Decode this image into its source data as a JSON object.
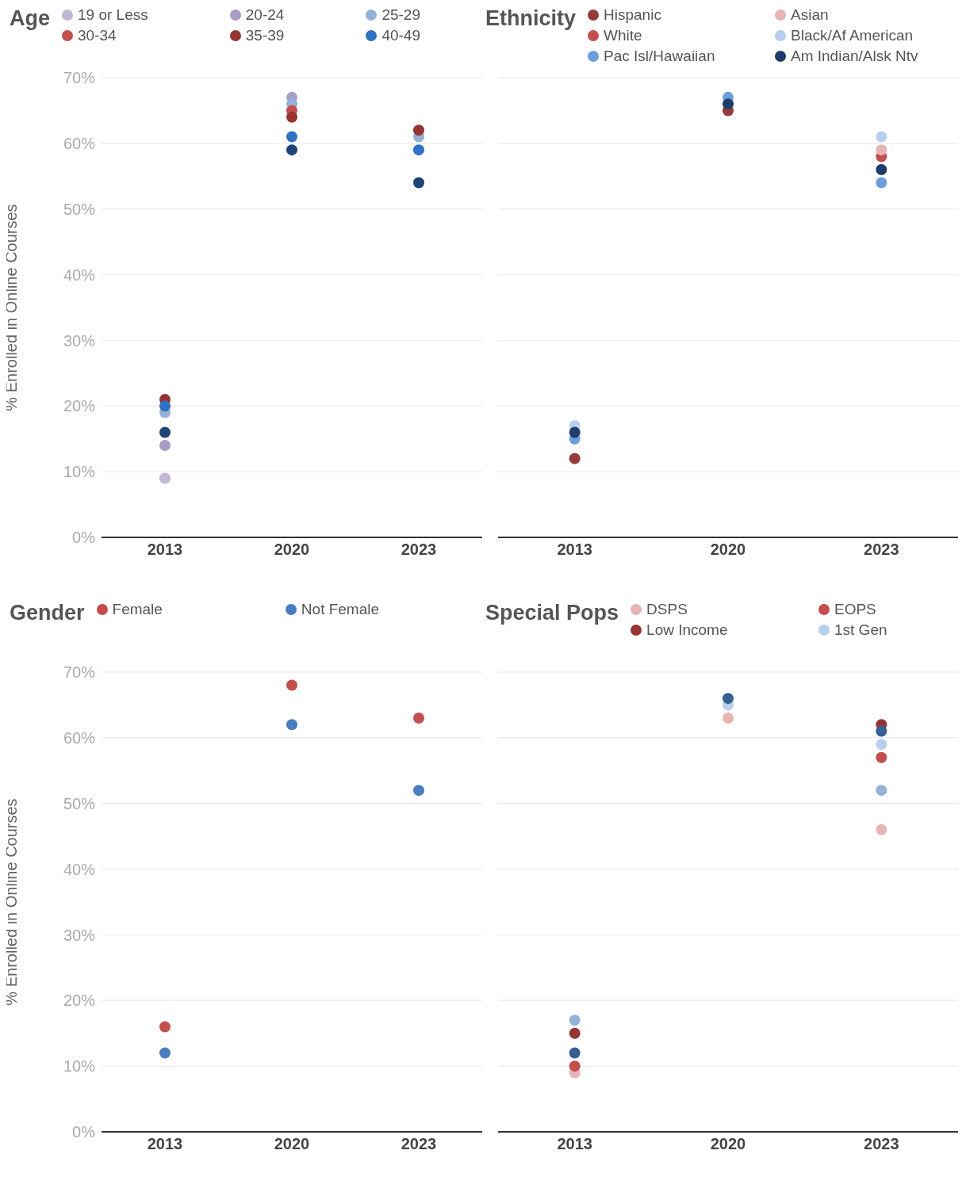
{
  "chart_data": [
    {
      "type": "scatter",
      "title": "Age",
      "ylabel": "% Enrolled in Online Courses",
      "categories": [
        "2013",
        "2020",
        "2023"
      ],
      "ylim": [
        0,
        70
      ],
      "yticks": [
        {
          "value": 0,
          "label": "0%"
        },
        {
          "value": 10,
          "label": "10%"
        },
        {
          "value": 20,
          "label": "20%"
        },
        {
          "value": 30,
          "label": "30%"
        },
        {
          "value": 40,
          "label": "40%"
        },
        {
          "value": 50,
          "label": "50%"
        },
        {
          "value": 60,
          "label": "60%"
        },
        {
          "value": 70,
          "label": "70%"
        }
      ],
      "grid": "y",
      "legend": "top",
      "marker": "circle",
      "series": [
        {
          "name": "19 or Less",
          "color": "#c0b8d4",
          "values": [
            9,
            null,
            null
          ]
        },
        {
          "name": "20-24",
          "color": "#a99cc4",
          "values": [
            14,
            67,
            null
          ]
        },
        {
          "name": "25-29",
          "color": "#94b2d8",
          "values": [
            19,
            66,
            61
          ]
        },
        {
          "name": "30-34",
          "color": "#c44e4e",
          "values": [
            null,
            65,
            null
          ]
        },
        {
          "name": "35-39",
          "color": "#963434",
          "values": [
            21,
            64,
            62
          ]
        },
        {
          "name": "40-49",
          "color": "#2f72c4",
          "values": [
            20,
            61,
            59
          ]
        },
        {
          "color": "#1f4478",
          "values": [
            16,
            59,
            54
          ]
        }
      ]
    },
    {
      "type": "scatter",
      "title": "Ethnicity",
      "categories": [
        "2013",
        "2020",
        "2023"
      ],
      "ylim": [
        0,
        70
      ],
      "yticks": [
        {
          "value": 0,
          "label": null
        },
        {
          "value": 10,
          "label": null
        },
        {
          "value": 20,
          "label": null
        },
        {
          "value": 30,
          "label": null
        },
        {
          "value": 40,
          "label": null
        },
        {
          "value": 50,
          "label": null
        },
        {
          "value": 60,
          "label": null
        },
        {
          "value": 70,
          "label": null
        }
      ],
      "tick_labels": "x",
      "grid": "y",
      "legend": "top",
      "marker": "circle",
      "series": [
        {
          "name": "Hispanic",
          "color": "#963a3a",
          "values": [
            12,
            65,
            null
          ]
        },
        {
          "name": "White",
          "color": "#c44e4e",
          "values": [
            null,
            null,
            58
          ]
        },
        {
          "name": "Pac Isl/Hawaiian",
          "color": "#6c9ede",
          "values": [
            15,
            67,
            54
          ]
        },
        {
          "name": "Asian",
          "color": "#e6b4b4",
          "values": [
            null,
            null,
            59
          ]
        },
        {
          "name": "Black/Af American",
          "color": "#b8cfee",
          "values": [
            17,
            null,
            61
          ]
        },
        {
          "name": "Am Indian/Alsk Ntv",
          "color": "#1f3c6a",
          "values": [
            16,
            66,
            56
          ]
        }
      ]
    },
    {
      "type": "scatter",
      "title": "Gender",
      "ylabel": "% Enrolled in Online Courses",
      "categories": [
        "2013",
        "2020",
        "2023"
      ],
      "ylim": [
        0,
        70
      ],
      "yticks": [
        {
          "value": 0,
          "label": "0%"
        },
        {
          "value": 10,
          "label": "10%"
        },
        {
          "value": 20,
          "label": "20%"
        },
        {
          "value": 30,
          "label": "30%"
        },
        {
          "value": 40,
          "label": "40%"
        },
        {
          "value": 50,
          "label": "50%"
        },
        {
          "value": 60,
          "label": "60%"
        },
        {
          "value": 70,
          "label": "70%"
        }
      ],
      "grid": "y",
      "legend": "top",
      "marker": "circle",
      "series": [
        {
          "name": "Female",
          "color": "#c44e4e",
          "values": [
            16,
            68,
            63
          ]
        },
        {
          "name": "Not Female",
          "color": "#4a7dbf",
          "values": [
            12,
            62,
            52
          ]
        }
      ]
    },
    {
      "type": "scatter",
      "title": "Special Pops",
      "categories": [
        "2013",
        "2020",
        "2023"
      ],
      "ylim": [
        0,
        70
      ],
      "yticks": [
        {
          "value": 0,
          "label": null
        },
        {
          "value": 10,
          "label": null
        },
        {
          "value": 20,
          "label": null
        },
        {
          "value": 30,
          "label": null
        },
        {
          "value": 40,
          "label": null
        },
        {
          "value": 50,
          "label": null
        },
        {
          "value": 60,
          "label": null
        },
        {
          "value": 70,
          "label": null
        }
      ],
      "tick_labels": "x",
      "grid": "y",
      "legend": "top",
      "marker": "circle",
      "series": [
        {
          "name": "DSPS",
          "color": "#e6b4b4",
          "values": [
            9,
            63,
            46
          ]
        },
        {
          "name": "EOPS",
          "color": "#c44e4e",
          "values": [
            10,
            null,
            57
          ]
        },
        {
          "name": "Low Income",
          "color": "#963434",
          "values": [
            15,
            null,
            62
          ]
        },
        {
          "name": "1st Gen",
          "color": "#b8cfee",
          "values": [
            null,
            65,
            59
          ]
        },
        {
          "color": "#94b2d8",
          "values": [
            17,
            null,
            52
          ]
        },
        {
          "color": "#365f92",
          "values": [
            12,
            66,
            61
          ]
        }
      ]
    }
  ]
}
